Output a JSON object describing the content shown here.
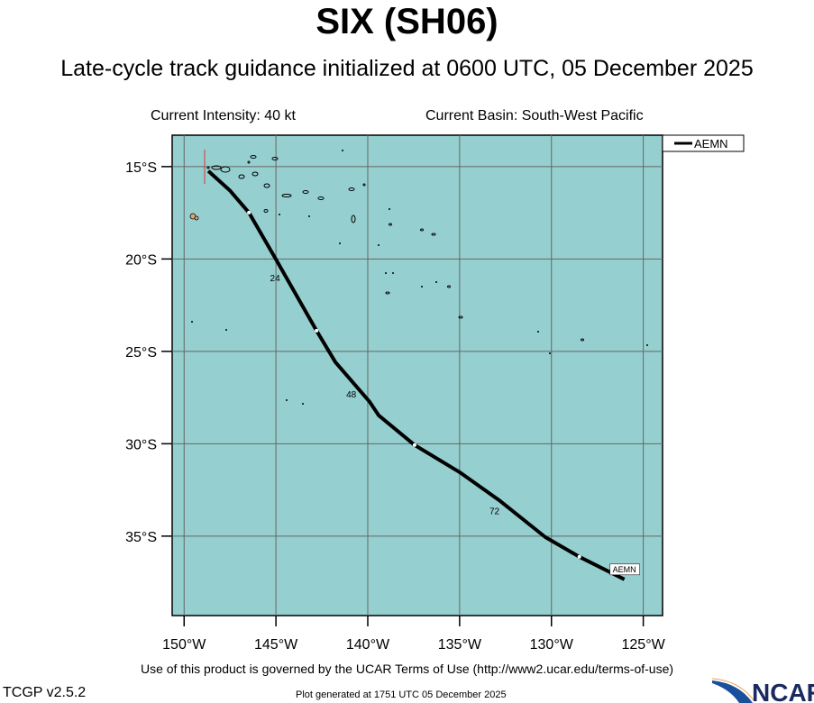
{
  "header": {
    "title": "SIX (SH06)",
    "subtitle": "Late-cycle track guidance initialized at 0600 UTC, 05 December 2025"
  },
  "info": {
    "intensity": "Current Intensity: 40 kt",
    "basin": "Current Basin: South-West Pacific"
  },
  "map": {
    "ocean_color": "#96cfcf",
    "land_color": "#d9a87a",
    "grid_color": "#666666",
    "lon_ticks": [
      {
        "v": -150,
        "label": "150°W"
      },
      {
        "v": -145,
        "label": "145°W"
      },
      {
        "v": -140,
        "label": "140°W"
      },
      {
        "v": -135,
        "label": "135°W"
      },
      {
        "v": -130,
        "label": "130°W"
      },
      {
        "v": -125,
        "label": "125°W"
      }
    ],
    "lat_ticks": [
      {
        "v": -15,
        "label": "15°S"
      },
      {
        "v": -20,
        "label": "20°S"
      },
      {
        "v": -25,
        "label": "25°S"
      },
      {
        "v": -30,
        "label": "30°S"
      },
      {
        "v": -35,
        "label": "35°S"
      }
    ],
    "lon_range": [
      -150.65,
      -123.95
    ],
    "lat_range": [
      -13.3,
      -39.3
    ]
  },
  "legend": {
    "label": "AEMN"
  },
  "track": {
    "name": "AEMN",
    "points": [
      [
        -148.68,
        -15.24
      ],
      [
        -147.5,
        -16.3
      ],
      [
        -146.47,
        -17.49
      ],
      [
        -145.0,
        -20.02
      ],
      [
        -142.79,
        -23.88
      ],
      [
        -141.76,
        -25.59
      ],
      [
        -139.9,
        -27.73
      ],
      [
        -139.41,
        -28.46
      ],
      [
        -137.45,
        -30.07
      ],
      [
        -135.0,
        -31.54
      ],
      [
        -132.79,
        -33.1
      ],
      [
        -130.34,
        -35.05
      ],
      [
        -128.48,
        -36.12
      ],
      [
        -126.03,
        -37.34
      ]
    ],
    "tick_marks": [
      [
        -146.47,
        -17.49
      ],
      [
        -142.79,
        -23.88
      ],
      [
        -137.45,
        -30.07
      ],
      [
        -128.48,
        -36.12
      ]
    ],
    "hour_labels": [
      {
        "text": "24",
        "lon": -145.05,
        "lat": -21.2
      },
      {
        "text": "48",
        "lon": -140.9,
        "lat": -27.5
      },
      {
        "text": "72",
        "lon": -133.1,
        "lat": -33.8
      }
    ],
    "end_label": "AEMN"
  },
  "footer": {
    "terms": "Use of this product is governed by the UCAR Terms of Use (http://www2.ucar.edu/terms-of-use)",
    "version": "TCGP v2.5.2",
    "generated": "Plot generated at 1751 UTC   05 December 2025",
    "logo": "NCAR"
  }
}
